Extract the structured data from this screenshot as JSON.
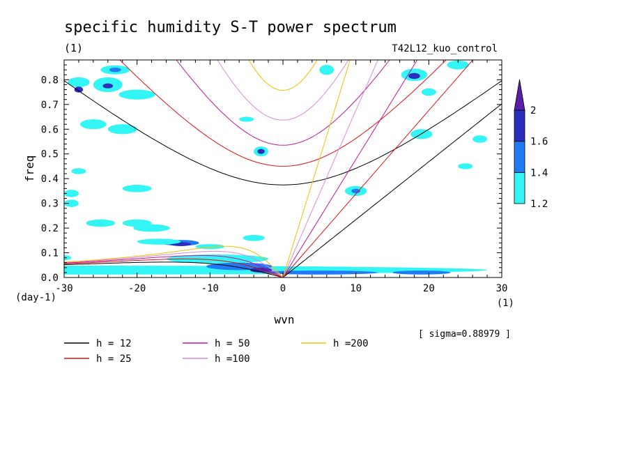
{
  "chart_data": {
    "type": "heatmap",
    "title": "specific humidity S-T power spectrum",
    "units_label": "(1)",
    "run_label": "T42L12_kuo_control",
    "xlabel": "wvn",
    "ylabel": "freq",
    "x_unit_label": "(1)",
    "y_unit_label": "(day-1)",
    "xlim": [
      -30,
      30
    ],
    "ylim": [
      0,
      0.88
    ],
    "x_ticks": [
      -30,
      -20,
      -10,
      0,
      10,
      20,
      30
    ],
    "x_tick_labels": [
      "-30",
      "-20",
      "-10",
      "0",
      "10",
      "20",
      "30"
    ],
    "y_ticks": [
      0,
      0.1,
      0.2,
      0.3,
      0.4,
      0.5,
      0.6,
      0.7,
      0.8
    ],
    "y_tick_labels": [
      "0.0",
      "0.1",
      "0.2",
      "0.3",
      "0.4",
      "0.5",
      "0.6",
      "0.7",
      "0.8"
    ],
    "sigma_label": "[ sigma=0.88979 ]",
    "colorbar": {
      "levels": [
        1.2,
        1.4,
        1.6,
        2
      ],
      "level_labels": [
        "1.2",
        "1.4",
        "1.6",
        "2"
      ],
      "colors": [
        "#33f5f5",
        "#1f7af5",
        "#2b2dbf",
        "#5a1ea8"
      ]
    },
    "dispersion_curves": [
      {
        "label": "h = 12",
        "h": 12,
        "color": "#000000"
      },
      {
        "label": "h = 25",
        "h": 25,
        "color": "#e01010"
      },
      {
        "label": "h = 50",
        "h": 50,
        "color": "#c0169c"
      },
      {
        "label": "h =100",
        "h": 100,
        "color": "#d98ad9"
      },
      {
        "label": "h =200",
        "h": 200,
        "color": "#f2c000"
      }
    ],
    "power_patches": [
      {
        "x": -30.0,
        "y": 0.03,
        "rx": 58.0,
        "ry": 0.018,
        "level": 0
      },
      {
        "x": -9.0,
        "y": 0.075,
        "rx": 7.0,
        "ry": 0.018,
        "level": 0
      },
      {
        "x": -6.0,
        "y": 0.045,
        "rx": 4.5,
        "ry": 0.015,
        "level": 1
      },
      {
        "x": -14.0,
        "y": 0.14,
        "rx": 2.5,
        "ry": 0.012,
        "level": 1
      },
      {
        "x": -14.0,
        "y": 0.135,
        "rx": 1.4,
        "ry": 0.008,
        "level": 2
      },
      {
        "x": -10.0,
        "y": 0.125,
        "rx": 2.0,
        "ry": 0.01,
        "level": 0
      },
      {
        "x": -17.0,
        "y": 0.145,
        "rx": 3.0,
        "ry": 0.012,
        "level": 0
      },
      {
        "x": -3.0,
        "y": 0.03,
        "rx": 1.5,
        "ry": 0.01,
        "level": 2
      },
      {
        "x": 5.0,
        "y": 0.02,
        "rx": 8.0,
        "ry": 0.008,
        "level": 1
      },
      {
        "x": 19.0,
        "y": 0.02,
        "rx": 4.0,
        "ry": 0.008,
        "level": 1
      },
      {
        "x": -28.0,
        "y": 0.79,
        "rx": 1.5,
        "ry": 0.02,
        "level": 0
      },
      {
        "x": -28.0,
        "y": 0.76,
        "rx": 0.6,
        "ry": 0.012,
        "level": 2
      },
      {
        "x": -26.0,
        "y": 0.62,
        "rx": 1.8,
        "ry": 0.02,
        "level": 0
      },
      {
        "x": -22.0,
        "y": 0.6,
        "rx": 2.0,
        "ry": 0.02,
        "level": 0
      },
      {
        "x": -23.0,
        "y": 0.84,
        "rx": 2.0,
        "ry": 0.018,
        "level": 0
      },
      {
        "x": -23.0,
        "y": 0.84,
        "rx": 0.8,
        "ry": 0.009,
        "level": 1
      },
      {
        "x": -24.0,
        "y": 0.78,
        "rx": 2.0,
        "ry": 0.03,
        "level": 0
      },
      {
        "x": -24.0,
        "y": 0.775,
        "rx": 0.7,
        "ry": 0.01,
        "level": 2
      },
      {
        "x": -20.0,
        "y": 0.74,
        "rx": 2.5,
        "ry": 0.02,
        "level": 0
      },
      {
        "x": -30.0,
        "y": 0.08,
        "rx": 1.0,
        "ry": 0.01,
        "level": 0
      },
      {
        "x": -28.0,
        "y": 0.43,
        "rx": 1.0,
        "ry": 0.012,
        "level": 0
      },
      {
        "x": -29.0,
        "y": 0.34,
        "rx": 1.0,
        "ry": 0.015,
        "level": 0
      },
      {
        "x": -29.0,
        "y": 0.3,
        "rx": 1.0,
        "ry": 0.015,
        "level": 0
      },
      {
        "x": -25.0,
        "y": 0.22,
        "rx": 2.0,
        "ry": 0.015,
        "level": 0
      },
      {
        "x": -20.0,
        "y": 0.22,
        "rx": 2.0,
        "ry": 0.015,
        "level": 0
      },
      {
        "x": -18.0,
        "y": 0.2,
        "rx": 2.5,
        "ry": 0.015,
        "level": 0
      },
      {
        "x": -3.0,
        "y": 0.51,
        "rx": 1.0,
        "ry": 0.02,
        "level": 0
      },
      {
        "x": -3.0,
        "y": 0.51,
        "rx": 0.5,
        "ry": 0.01,
        "level": 2
      },
      {
        "x": -5.0,
        "y": 0.64,
        "rx": 1.0,
        "ry": 0.01,
        "level": 0
      },
      {
        "x": 6.0,
        "y": 0.84,
        "rx": 1.0,
        "ry": 0.02,
        "level": 0
      },
      {
        "x": 10.0,
        "y": 0.35,
        "rx": 1.5,
        "ry": 0.02,
        "level": 0
      },
      {
        "x": 10.0,
        "y": 0.35,
        "rx": 0.6,
        "ry": 0.009,
        "level": 1
      },
      {
        "x": 18.0,
        "y": 0.82,
        "rx": 1.8,
        "ry": 0.025,
        "level": 0
      },
      {
        "x": 18.0,
        "y": 0.815,
        "rx": 0.8,
        "ry": 0.012,
        "level": 2
      },
      {
        "x": 20.0,
        "y": 0.75,
        "rx": 1.0,
        "ry": 0.015,
        "level": 0
      },
      {
        "x": 24.0,
        "y": 0.86,
        "rx": 1.5,
        "ry": 0.018,
        "level": 0
      },
      {
        "x": 19.0,
        "y": 0.58,
        "rx": 1.5,
        "ry": 0.02,
        "level": 0
      },
      {
        "x": 27.0,
        "y": 0.56,
        "rx": 1.0,
        "ry": 0.015,
        "level": 0
      },
      {
        "x": 25.0,
        "y": 0.45,
        "rx": 1.0,
        "ry": 0.012,
        "level": 0
      },
      {
        "x": -20.0,
        "y": 0.36,
        "rx": 2.0,
        "ry": 0.015,
        "level": 0
      },
      {
        "x": -4.0,
        "y": 0.16,
        "rx": 1.5,
        "ry": 0.012,
        "level": 0
      }
    ]
  }
}
